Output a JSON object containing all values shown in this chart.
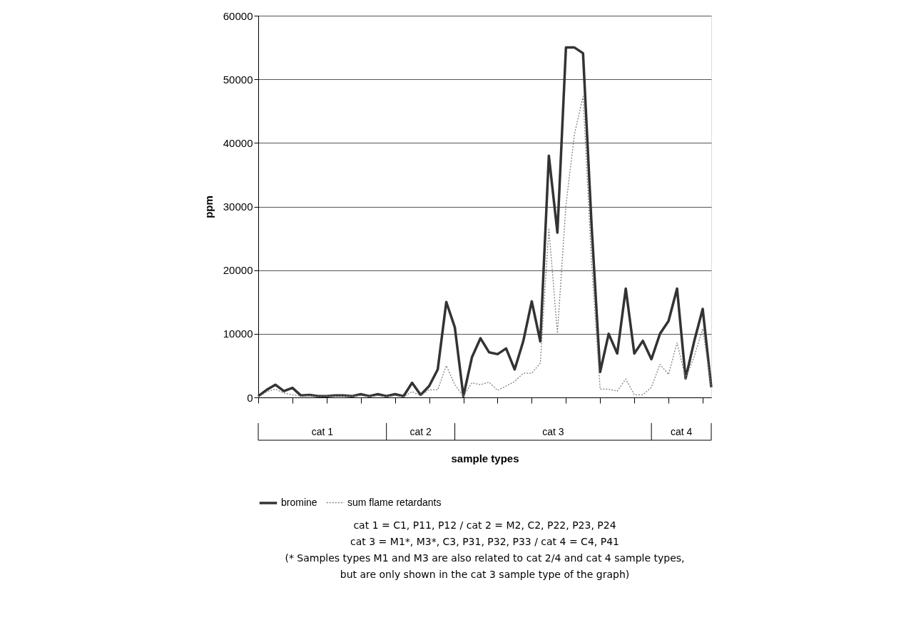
{
  "chart_data": {
    "type": "line",
    "xlabel": "sample types",
    "ylabel": "ppm",
    "categories": [
      null,
      null,
      null,
      null,
      null,
      null,
      null,
      null,
      null,
      null,
      null,
      null,
      null,
      null,
      null,
      null,
      null,
      null,
      null,
      null,
      null,
      null,
      null,
      null,
      null,
      null,
      null,
      null,
      null,
      null,
      null,
      null,
      null,
      null,
      null,
      null,
      null,
      null,
      null,
      null,
      null,
      null,
      null,
      null,
      null,
      null,
      null,
      null,
      null,
      null,
      null,
      null,
      null,
      null
    ],
    "series": [
      {
        "name": "bromine",
        "color": "#333333",
        "line_style": "solid",
        "values": [
          200,
          1200,
          2000,
          1000,
          1500,
          300,
          400,
          200,
          200,
          300,
          300,
          200,
          500,
          200,
          500,
          200,
          500,
          200,
          2300,
          400,
          1800,
          4400,
          15000,
          11000,
          200,
          6300,
          9300,
          7100,
          6800,
          7700,
          4400,
          8800,
          15100,
          8800,
          38000,
          25900,
          55000,
          55000,
          54100,
          27000,
          4000,
          10000,
          6900,
          17100,
          6900,
          8900,
          6000,
          10000,
          12000,
          17100,
          3000,
          8800,
          13900,
          1600
        ]
      },
      {
        "name": "sum flame retardants",
        "color": "#808080",
        "line_style": "dotted",
        "values": [
          0,
          900,
          1300,
          700,
          400,
          200,
          300,
          100,
          200,
          200,
          200,
          200,
          300,
          100,
          300,
          100,
          300,
          100,
          900,
          300,
          1200,
          1200,
          5000,
          2000,
          200,
          2300,
          2000,
          2400,
          1100,
          1800,
          2500,
          3800,
          3800,
          5400,
          26600,
          10100,
          30200,
          41400,
          47300,
          21000,
          1300,
          1300,
          1000,
          2900,
          400,
          400,
          1600,
          5200,
          3600,
          8600,
          3000,
          6400,
          10800,
          1600
        ]
      }
    ],
    "ylim": [
      0,
      60000
    ],
    "yticks": [
      0,
      10000,
      20000,
      30000,
      40000,
      50000,
      60000
    ],
    "grid": "y",
    "legend": "bottom",
    "tick_labels": "y",
    "annotations": [
      "cat 1",
      "cat 2",
      "cat 3",
      "cat 4",
      "cat 1 = C1, P11, P12 / cat 2 =  M2, C2, P22, P23, P24",
      "cat 3 = M1*, M3*, C3, P31, P32, P33 / cat 4 = C4, P41",
      "(* Samples types M1 and M3 are also related to cat 2/4 and cat 4 sample types,",
      "but are only shown in the cat 3 sample type of the graph)"
    ]
  }
}
